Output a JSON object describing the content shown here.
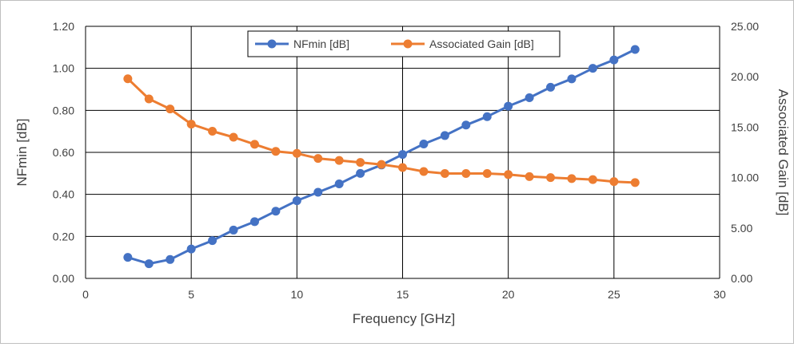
{
  "chart_data": {
    "type": "line",
    "x": [
      2,
      3,
      4,
      5,
      6,
      7,
      8,
      9,
      10,
      11,
      12,
      13,
      14,
      15,
      16,
      17,
      18,
      19,
      20,
      21,
      22,
      23,
      24,
      25,
      26
    ],
    "series": [
      {
        "name": "NFmin [dB]",
        "axis": "left",
        "color": "#4472c4",
        "values": [
          0.1,
          0.07,
          0.09,
          0.14,
          0.18,
          0.23,
          0.27,
          0.32,
          0.37,
          0.41,
          0.45,
          0.5,
          0.54,
          0.59,
          0.64,
          0.68,
          0.73,
          0.77,
          0.82,
          0.86,
          0.91,
          0.95,
          1.0,
          1.04,
          1.09
        ]
      },
      {
        "name": "Associated Gain [dB]",
        "axis": "right",
        "color": "#ed7d31",
        "values": [
          19.8,
          17.8,
          16.8,
          15.3,
          14.6,
          14.0,
          13.3,
          12.6,
          12.4,
          11.9,
          11.7,
          11.5,
          11.3,
          11.0,
          10.6,
          10.4,
          10.4,
          10.4,
          10.3,
          10.1,
          10.0,
          9.9,
          9.8,
          9.6,
          9.5
        ]
      }
    ],
    "xlabel": "Frequency [GHz]",
    "ylabel": "NFmin [dB]",
    "y2label": "Associated Gain [dB]",
    "xlim": [
      0,
      30
    ],
    "ylim": [
      0,
      1.2
    ],
    "y2lim": [
      0,
      25
    ],
    "x_ticks": [
      0,
      5,
      10,
      15,
      20,
      25,
      30
    ],
    "y_ticks": [
      "0.00",
      "0.20",
      "0.40",
      "0.60",
      "0.80",
      "1.00",
      "1.20"
    ],
    "y2_ticks": [
      "0.00",
      "5.00",
      "10.00",
      "15.00",
      "20.00",
      "25.00"
    ],
    "grid": true,
    "legend_position": "top-center"
  }
}
